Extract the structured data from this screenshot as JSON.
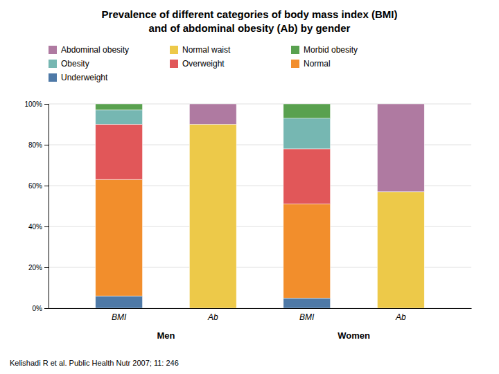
{
  "chart_data": {
    "type": "bar",
    "title": "Prevalence of different categories of body mass index (BMI)",
    "subtitle": "and of abdominal obesity (Ab) by gender",
    "categories": [
      "BMI",
      "Ab",
      "BMI",
      "Ab"
    ],
    "series": [
      {
        "name": "Underweight",
        "values": [
          6,
          null,
          5,
          null
        ]
      },
      {
        "name": "Normal",
        "values": [
          57,
          null,
          46,
          null
        ]
      },
      {
        "name": "Overweight",
        "values": [
          27,
          null,
          27,
          null
        ]
      },
      {
        "name": "Obesity",
        "values": [
          7,
          null,
          15,
          null
        ]
      },
      {
        "name": "Morbid obesity",
        "values": [
          3,
          null,
          7,
          null
        ]
      },
      {
        "name": "Normal waist",
        "values": [
          null,
          90,
          null,
          57
        ]
      },
      {
        "name": "Abdominal obesity",
        "values": [
          null,
          10,
          null,
          43
        ]
      }
    ],
    "stacked": true,
    "ylim": [
      0,
      100
    ],
    "yticks": [
      {
        "value": 0,
        "label": "0%"
      },
      {
        "value": 20,
        "label": "20%"
      },
      {
        "value": 40,
        "label": "40%"
      },
      {
        "value": 60,
        "label": "60%"
      },
      {
        "value": 80,
        "label": "80%"
      },
      {
        "value": 100,
        "label": "100%"
      }
    ],
    "grid": true,
    "legend": "top",
    "annotations": [
      "Men",
      "Women"
    ],
    "source": "Kelishadi R et al. Public Health Nutr 2007; 11: 246"
  }
}
